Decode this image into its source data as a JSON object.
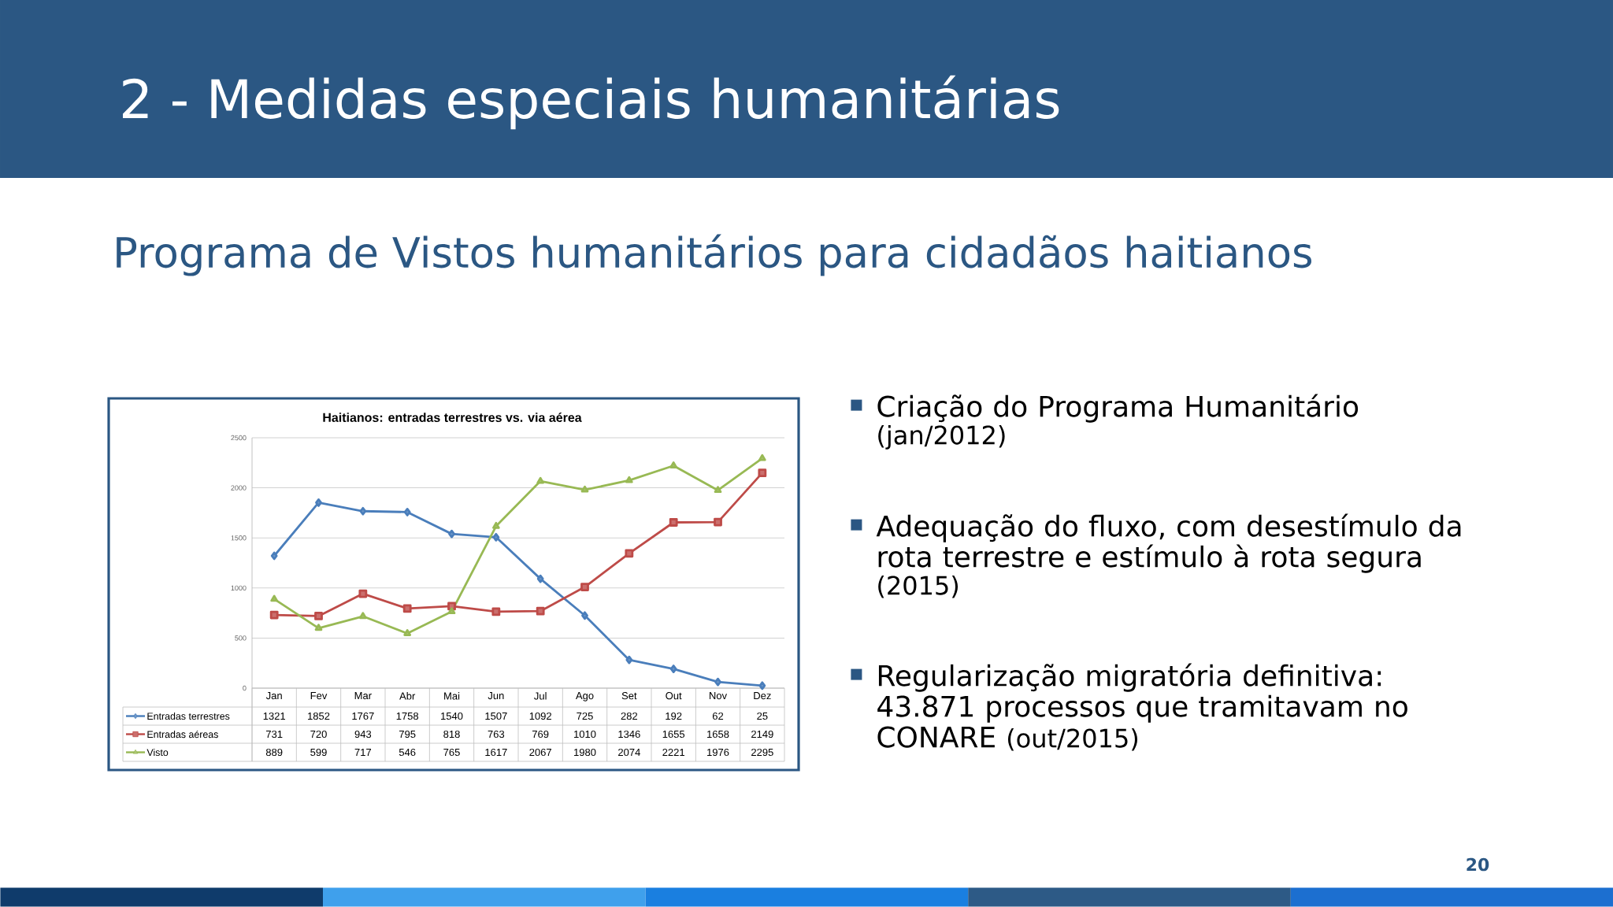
{
  "chart_data": {
    "type": "line",
    "title": "2 - Medidas especiais humanitárias",
    "subtitle": "Programa de Vistos humanitários para cidadãos haitianos",
    "annotations": [
      "Haitianos: entradas terrestres vs. via aérea",
      "Criação do Programa Humanitário",
      "(jan/2012)",
      "Adequação do fluxo, com desestímulo da rota terrestre e estímulo à rota segura",
      "(2015)",
      "Regularização migratória definitiva: 43.871 processos que tramitavam no CONARE",
      "(out/2015)",
      "20"
    ],
    "categories": [
      "Jan",
      "Fev",
      "Mar",
      "Abr",
      "Mai",
      "Jun",
      "Jul",
      "Ago",
      "Set",
      "Out",
      "Nov",
      "Dez"
    ],
    "series": [
      {
        "name": "Entradas terrestres",
        "color": "#4a7ebb",
        "marker": "diamond",
        "values": [
          1321,
          1852,
          1767,
          1758,
          1540,
          1507,
          1092,
          725,
          282,
          192,
          62,
          25
        ]
      },
      {
        "name": "Entradas aéreas",
        "color": "#be4b48",
        "marker": "square",
        "values": [
          731,
          720,
          943,
          795,
          818,
          763,
          769,
          1010,
          1346,
          1655,
          1658,
          2149
        ]
      },
      {
        "name": "Visto",
        "color": "#98b954",
        "marker": "triangle",
        "values": [
          889,
          599,
          717,
          546,
          765,
          1617,
          2067,
          1980,
          2074,
          2221,
          1976,
          2295
        ]
      }
    ],
    "ylim": [
      0,
      2500
    ],
    "yticks": [
      0,
      500,
      1000,
      1500,
      2000,
      2500
    ],
    "grid": "y",
    "legend": "bottom",
    "data_labels": true,
    "line_style": "solid"
  }
}
